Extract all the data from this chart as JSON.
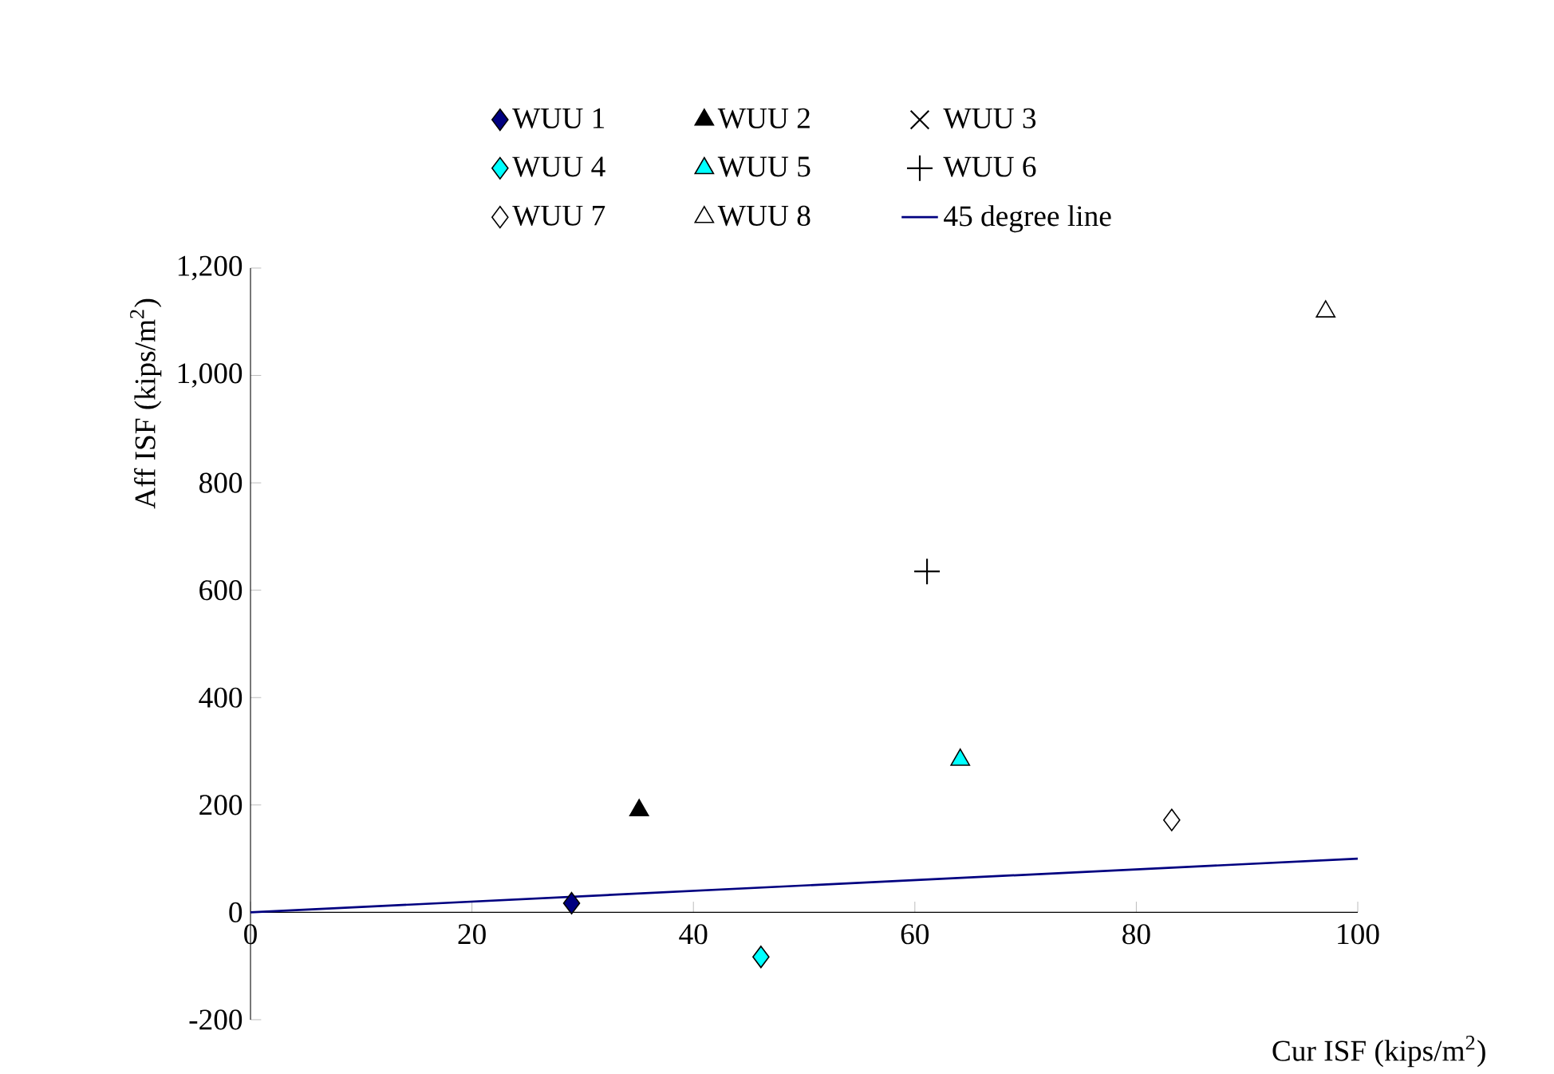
{
  "chart_data": {
    "type": "scatter",
    "xlabel": "Cur ISF (kips/m$^{2}$)",
    "ylabel": "Aff ISF (kips/m$^{2}$)",
    "xlim": [
      0,
      100
    ],
    "xticks": [
      0,
      20,
      40,
      60,
      80,
      100
    ],
    "ylim": [
      -200,
      1200
    ],
    "yticks": [
      -200,
      0,
      200,
      400,
      600,
      800,
      {
        "value": 1000,
        "label": "1,000"
      },
      {
        "value": 1200,
        "label": "1,200"
      }
    ],
    "grid": false,
    "legend": "top",
    "series": [
      {
        "name": "WUU 1",
        "color": "#000080",
        "marker": "diamond",
        "x": [
          29.0
        ],
        "values": [
          17
        ]
      },
      {
        "name": "WUU 2",
        "color": "#000000",
        "marker": "triangle",
        "x": [
          35.1
        ],
        "values": [
          190
        ]
      },
      {
        "name": "WUU 3",
        "color": "#000000",
        "marker": "cross",
        "x": [
          null
        ],
        "values": [
          null
        ]
      },
      {
        "name": "WUU 4",
        "color": "#00ffff",
        "marker": "diamond",
        "x": [
          46.1
        ],
        "values": [
          -83
        ]
      },
      {
        "name": "WUU 5",
        "color": "#00ffff",
        "marker": "triangle",
        "x": [
          64.1
        ],
        "values": [
          284
        ]
      },
      {
        "name": "WUU 6",
        "color": "#000000",
        "marker": "plus",
        "x": [
          61.1
        ],
        "values": [
          635
        ]
      },
      {
        "name": "WUU 7",
        "color": "#ffffff",
        "marker": "diamond",
        "x": [
          83.2
        ],
        "values": [
          172
        ]
      },
      {
        "name": "WUU 8",
        "color": "#ffffff",
        "marker": "triangle",
        "x": [
          97.1
        ],
        "values": [
          1119
        ]
      },
      {
        "name": "45 degree line",
        "type": "line",
        "color": "#000080",
        "marker": "none",
        "line_style": "solid",
        "x": [
          0,
          100
        ],
        "values": [
          0,
          100
        ]
      }
    ]
  }
}
